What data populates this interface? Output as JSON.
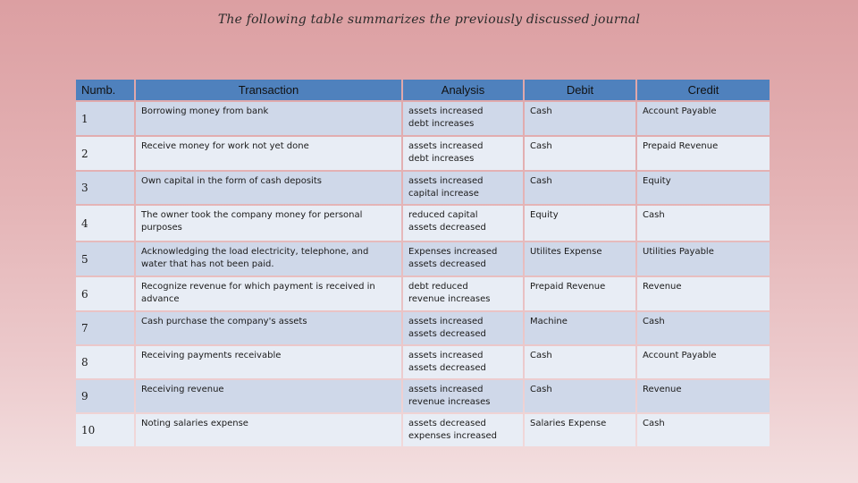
{
  "title": "The following table summarizes the previously discussed journal",
  "table": {
    "headers": [
      "Numb.",
      "Transaction",
      "Analysis",
      "Debit",
      "Credit"
    ],
    "rows": [
      {
        "num": "1",
        "transaction": "Borrowing money from bank",
        "analysis1": "assets increased",
        "analysis2": "debt increases",
        "debit": "Cash",
        "credit": "Account Payable"
      },
      {
        "num": "2",
        "transaction": "Receive money for work not yet done",
        "analysis1": "assets increased",
        "analysis2": "debt increases",
        "debit": "Cash",
        "credit": "Prepaid Revenue"
      },
      {
        "num": "3",
        "transaction": "Own capital in the form of cash deposits",
        "analysis1": "assets increased",
        "analysis2": "capital increase",
        "debit": "Cash",
        "credit": "Equity"
      },
      {
        "num": "4",
        "transaction": "The owner took the company money for personal purposes",
        "analysis1": "reduced capital",
        "analysis2": "assets decreased",
        "debit": "Equity",
        "credit": "Cash"
      },
      {
        "num": "5",
        "transaction": "Acknowledging the load electricity, telephone, and water that has not been paid.",
        "analysis1": "Expenses increased",
        "analysis2": "assets decreased",
        "debit": "Utilites Expense",
        "credit": "Utilities Payable"
      },
      {
        "num": "6",
        "transaction": "Recognize revenue for which payment is received in advance",
        "analysis1": "debt reduced",
        "analysis2": "revenue increases",
        "debit": "Prepaid Revenue",
        "credit": "Revenue"
      },
      {
        "num": "7",
        "transaction": "Cash purchase the company's assets",
        "analysis1": "assets increased",
        "analysis2": "assets decreased",
        "debit": "Machine",
        "credit": "Cash"
      },
      {
        "num": "8",
        "transaction": "Receiving payments receivable",
        "analysis1": "assets increased",
        "analysis2": "assets decreased",
        "debit": "Cash",
        "credit": "Account Payable"
      },
      {
        "num": "9",
        "transaction": "Receiving revenue",
        "analysis1": "assets increased",
        "analysis2": "revenue increases",
        "debit": "Cash",
        "credit": "Revenue"
      },
      {
        "num": "10",
        "transaction": "Noting salaries expense",
        "analysis1": "assets decreased",
        "analysis2": "expenses increased",
        "debit": "Salaries Expense",
        "credit": "Cash"
      }
    ]
  },
  "colors": {
    "header": "#4f81bd",
    "row_odd": "#cfd8e9",
    "row_even": "#e8edf5"
  }
}
